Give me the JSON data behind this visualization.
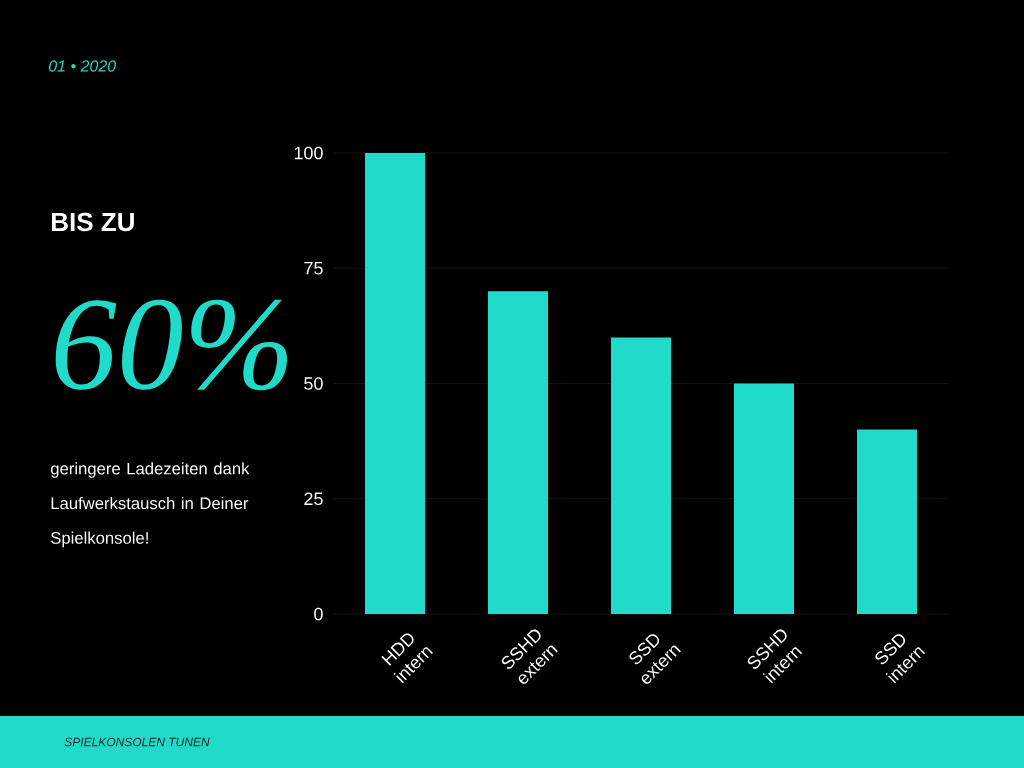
{
  "chart_data": {
    "type": "bar",
    "categories": [
      "HDD intern",
      "SSHD extern",
      "SSD extern",
      "SSHD intern",
      "SSD intern"
    ],
    "values": [
      100,
      70,
      60,
      50,
      40
    ],
    "color": "#20dbc9",
    "ylim": [
      0,
      100
    ],
    "yticks": [
      0,
      25,
      50,
      75,
      100
    ],
    "grid": "y",
    "annotations": [
      "01 • 2020",
      "BIS ZU",
      "60%",
      "geringere Ladezeiten dank Laufwerkstausch in Deiner Spielkonsole!",
      "SPIELKONSOLEN TUNEN"
    ]
  }
}
